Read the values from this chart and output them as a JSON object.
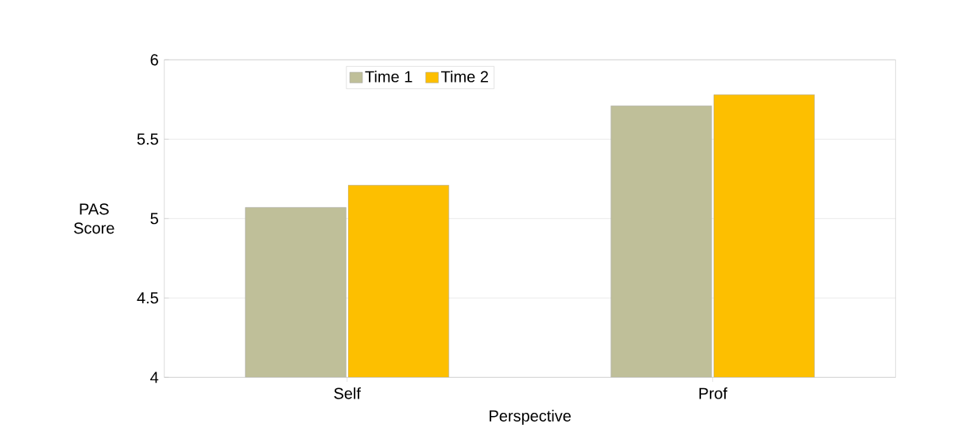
{
  "chart_data": {
    "type": "bar",
    "xlabel": "Perspective",
    "ylabel": "PAS Score",
    "categories": [
      "Self",
      "Prof"
    ],
    "series": [
      {
        "name": "Time 1",
        "color": "#bfbf99",
        "values": [
          5.07,
          5.71
        ]
      },
      {
        "name": "Time 2",
        "color": "#fdbf00",
        "values": [
          5.21,
          5.78
        ]
      }
    ],
    "ylim": [
      4,
      6
    ],
    "yticks": [
      4,
      4.5,
      5,
      5.5,
      6
    ],
    "grid": "y",
    "legend": "top"
  }
}
